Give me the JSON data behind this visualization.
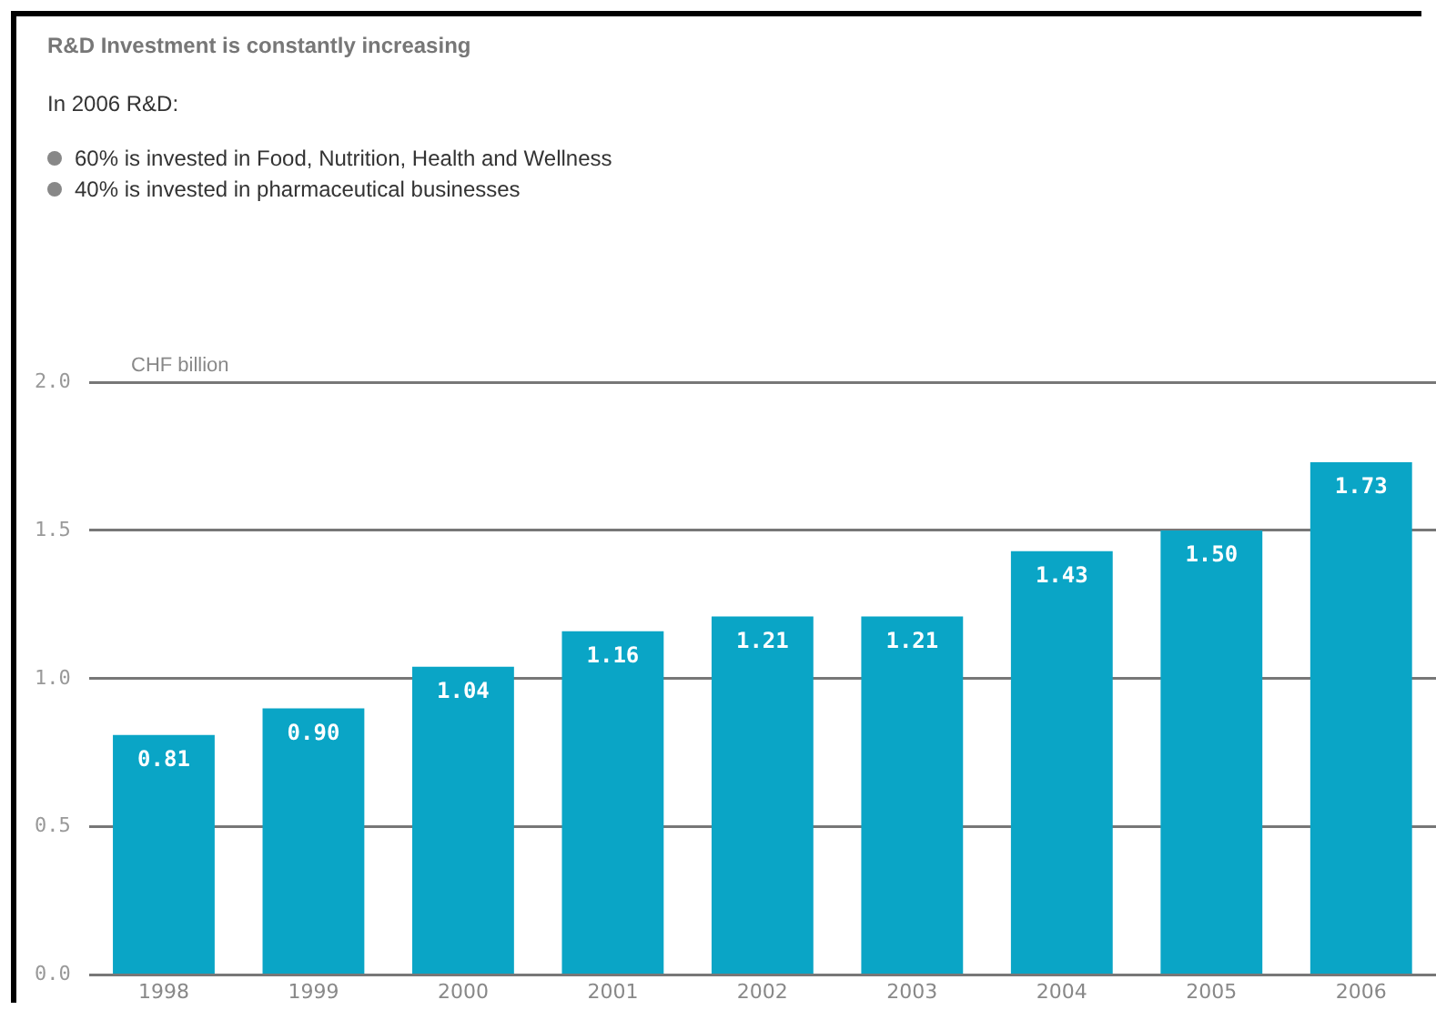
{
  "chart_data": {
    "type": "bar",
    "title": "R&D Investment is constantly increasing",
    "subtitle": "In 2006 R&D:",
    "annotations": [
      "60% is invested in Food, Nutrition, Health and Wellness",
      "40% is invested in pharmaceutical businesses"
    ],
    "ylabel": "CHF billion",
    "categories": [
      "1998",
      "1999",
      "2000",
      "2001",
      "2002",
      "2003",
      "2004",
      "2005",
      "2006"
    ],
    "values": [
      0.81,
      0.9,
      1.04,
      1.16,
      1.21,
      1.21,
      1.43,
      1.5,
      1.73
    ],
    "value_labels": [
      "0.81",
      "0.90",
      "1.04",
      "1.16",
      "1.21",
      "1.21",
      "1.43",
      "1.50",
      "1.73"
    ],
    "color": "#0aa5c6",
    "ylim": [
      0,
      2
    ],
    "yticks": [
      {
        "value": 0,
        "label": "0.0"
      },
      {
        "value": 0.5,
        "label": "0.5"
      },
      {
        "value": 1,
        "label": "1.0"
      },
      {
        "value": 1.5,
        "label": "1.5"
      },
      {
        "value": 2,
        "label": "2.0"
      }
    ],
    "grid": "y",
    "legend": false
  }
}
